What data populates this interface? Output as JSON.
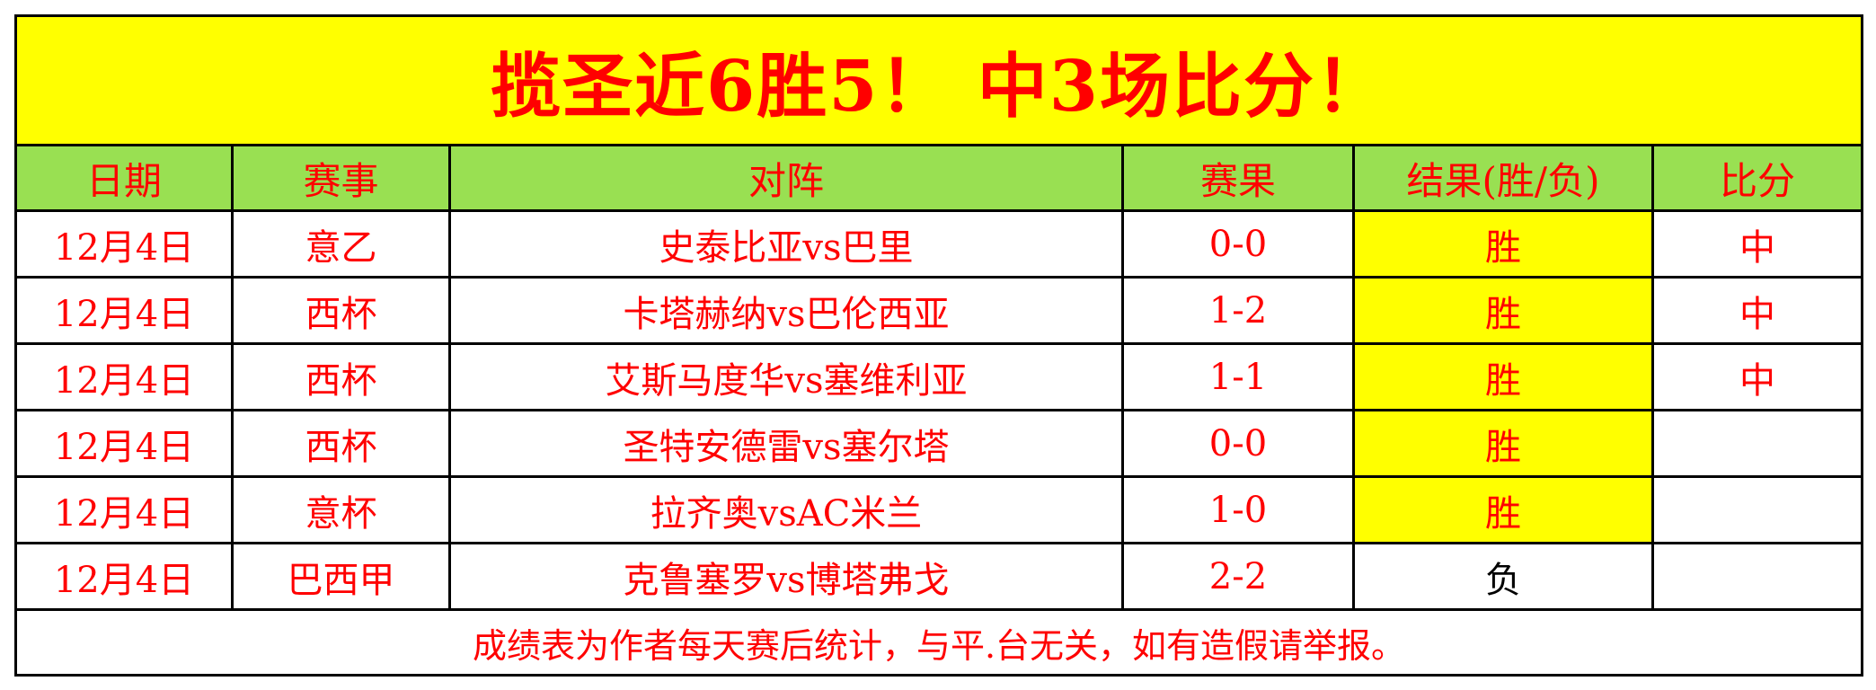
{
  "title": "揽圣近6胜5！ 中3场比分！",
  "headers": [
    "日期",
    "赛事",
    "对阵",
    "赛果",
    "结果(胜/负)",
    "比分"
  ],
  "rows": [
    {
      "date": "12月4日",
      "league": "意乙",
      "match": "史泰比亚vs巴里",
      "score": "0-0",
      "result": "胜",
      "bifen": "中"
    },
    {
      "date": "12月4日",
      "league": "西杯",
      "match": "卡塔赫纳vs巴伦西亚",
      "score": "1-2",
      "result": "胜",
      "bifen": "中"
    },
    {
      "date": "12月4日",
      "league": "西杯",
      "match": "艾斯马度华vs塞维利亚",
      "score": "1-1",
      "result": "胜",
      "bifen": "中"
    },
    {
      "date": "12月4日",
      "league": "西杯",
      "match": "圣特安德雷vs塞尔塔",
      "score": "0-0",
      "result": "胜",
      "bifen": ""
    },
    {
      "date": "12月4日",
      "league": "意杯",
      "match": "拉齐奥vsAC米兰",
      "score": "1-0",
      "result": "胜",
      "bifen": ""
    },
    {
      "date": "12月4日",
      "league": "巴西甲",
      "match": "克鲁塞罗vs博塔弗戈",
      "score": "2-2",
      "result": "负",
      "bifen": ""
    }
  ],
  "footer": "成绩表为作者每天赛后统计，与平.台无关，如有造假请举报。",
  "colors": {
    "title_bg": "#ffff00",
    "header_bg": "#99e052",
    "text": "#ff0000",
    "win_bg": "#ffff00"
  }
}
